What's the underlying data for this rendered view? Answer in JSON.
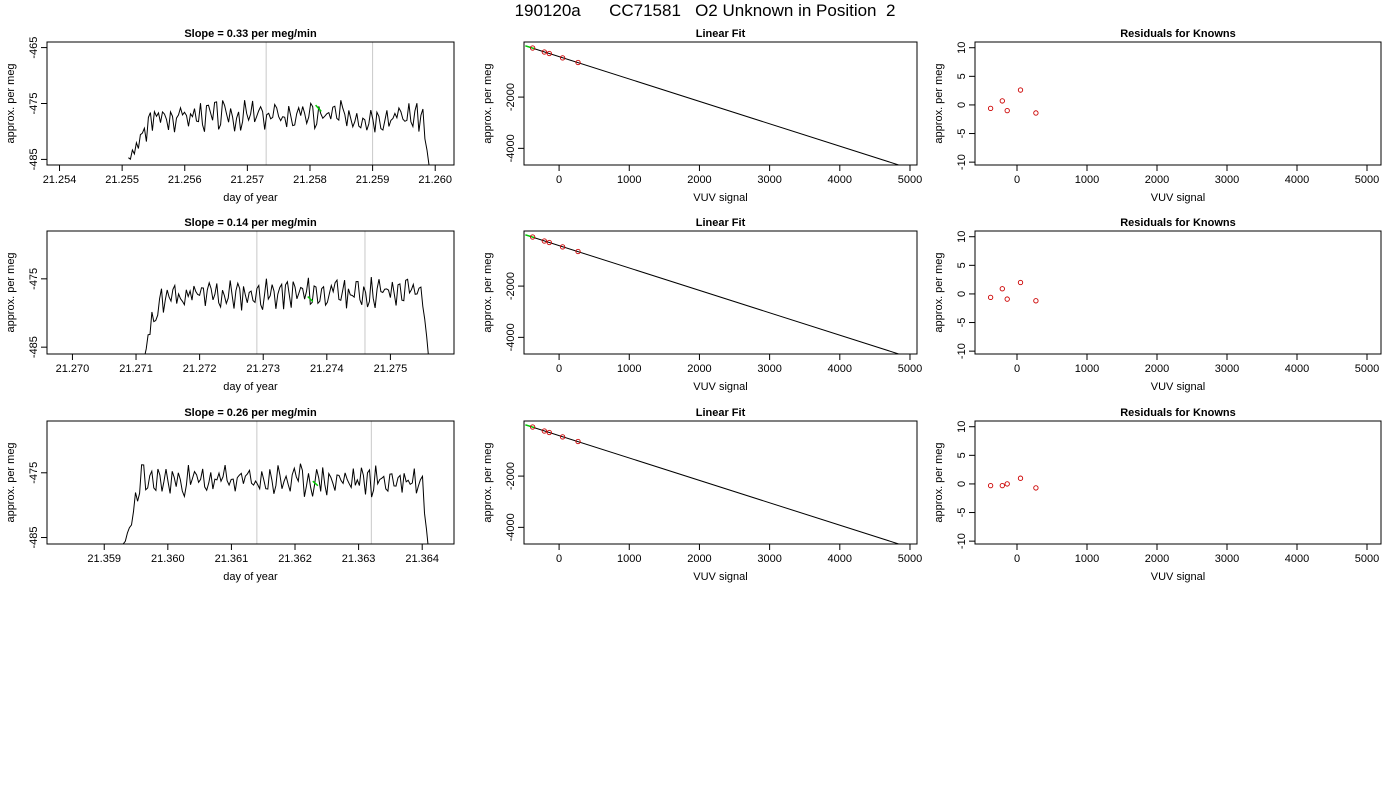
{
  "figure": {
    "title": "190120a      CC71581   O2 Unknown in Position  2"
  },
  "chart_data": [
    {
      "type": "line",
      "title": "Slope =  0.33  per meg/min",
      "xlabel": "day of year",
      "ylabel": "approx. per meg",
      "xlim": [
        21.2538,
        21.2603
      ],
      "ylim": [
        -486,
        -464
      ],
      "xticks": [
        "21.254",
        "21.255",
        "21.256",
        "21.257",
        "21.258",
        "21.259",
        "21.260"
      ],
      "yticks": [
        "-465",
        "-475",
        "-485"
      ],
      "vlines": [
        21.2573,
        21.259
      ],
      "seed": 3,
      "signal": {
        "x_start": 21.2551,
        "x_end": 21.2599,
        "base": -477.2,
        "trend": 0.0,
        "amp": 2.2,
        "low": -486,
        "rise_to": 21.2555,
        "drop_from": 21.2598
      },
      "highlight": {
        "x": [
          21.25809,
          21.25818
        ],
        "y": [
          -475.3,
          -476.4
        ],
        "color": "#00cc00"
      }
    },
    {
      "type": "scatter",
      "title": "Linear Fit",
      "xlabel": "VUV signal",
      "ylabel": "approx. per meg",
      "xlim": [
        -500,
        5100
      ],
      "ylim": [
        -4650,
        150
      ],
      "xticks": [
        "0",
        "1000",
        "2000",
        "3000",
        "4000",
        "5000"
      ],
      "yticks": [
        "-2000",
        "-4000"
      ],
      "points": [
        [
          -377,
          -85
        ],
        [
          -210,
          -240
        ],
        [
          -140,
          -300
        ],
        [
          50,
          -470
        ],
        [
          270,
          -650
        ]
      ],
      "fit_line": {
        "x": [
          -480,
          4920
        ],
        "y": [
          0,
          -4720
        ]
      },
      "green_segment": {
        "x": [
          -480,
          -350
        ],
        "y": [
          0,
          -110
        ]
      }
    },
    {
      "type": "scatter",
      "title": "Residuals for Knowns",
      "xlabel": "VUV signal",
      "ylabel": "approx. per meg",
      "xlim": [
        -600,
        5200
      ],
      "ylim": [
        -10.5,
        11
      ],
      "xticks": [
        "0",
        "1000",
        "2000",
        "3000",
        "4000",
        "5000"
      ],
      "yticks": [
        "10",
        "5",
        "0",
        "-5",
        "-10"
      ],
      "points": [
        [
          -377,
          -0.6
        ],
        [
          -210,
          0.7
        ],
        [
          -140,
          -1.0
        ],
        [
          50,
          2.6
        ],
        [
          270,
          -1.4
        ]
      ]
    },
    {
      "type": "line",
      "title": "Slope =  0.14  per meg/min",
      "xlabel": "day of year",
      "ylabel": "approx. per meg",
      "xlim": [
        21.2696,
        21.276
      ],
      "ylim": [
        -486,
        -468
      ],
      "xticks": [
        "21.270",
        "21.271",
        "21.272",
        "21.273",
        "21.274",
        "21.275"
      ],
      "yticks": [
        "-475",
        "-485"
      ],
      "vlines": [
        21.2729,
        21.2746
      ],
      "seed": 11,
      "signal": {
        "x_start": 21.2711,
        "x_end": 21.2756,
        "base": -477.6,
        "trend": 0.8,
        "amp": 1.8,
        "low": -486.5,
        "rise_to": 21.2714,
        "drop_from": 21.2755
      },
      "highlight": {
        "x": [
          21.2737,
          21.27378
        ],
        "y": [
          -477.6,
          -478.3
        ],
        "color": "#00cc00"
      }
    },
    {
      "type": "scatter",
      "title": "Linear Fit",
      "xlabel": "VUV signal",
      "ylabel": "approx. per meg",
      "xlim": [
        -500,
        5100
      ],
      "ylim": [
        -4650,
        150
      ],
      "xticks": [
        "0",
        "1000",
        "2000",
        "3000",
        "4000",
        "5000"
      ],
      "yticks": [
        "-2000",
        "-4000"
      ],
      "points": [
        [
          -377,
          -85
        ],
        [
          -210,
          -240
        ],
        [
          -140,
          -300
        ],
        [
          50,
          -470
        ],
        [
          270,
          -650
        ]
      ],
      "fit_line": {
        "x": [
          -480,
          4920
        ],
        "y": [
          0,
          -4720
        ]
      },
      "green_segment": {
        "x": [
          -480,
          -350
        ],
        "y": [
          0,
          -110
        ]
      }
    },
    {
      "type": "scatter",
      "title": "Residuals for Knowns",
      "xlabel": "VUV signal",
      "ylabel": "approx. per meg",
      "xlim": [
        -600,
        5200
      ],
      "ylim": [
        -10.5,
        11
      ],
      "xticks": [
        "0",
        "1000",
        "2000",
        "3000",
        "4000",
        "5000"
      ],
      "yticks": [
        "10",
        "5",
        "0",
        "-5",
        "-10"
      ],
      "points": [
        [
          -377,
          -0.6
        ],
        [
          -210,
          0.9
        ],
        [
          -140,
          -0.9
        ],
        [
          50,
          2.0
        ],
        [
          270,
          -1.2
        ]
      ]
    },
    {
      "type": "line",
      "title": "Slope =  0.26  per meg/min",
      "xlabel": "day of year",
      "ylabel": "approx. per meg",
      "xlim": [
        21.3581,
        21.3645
      ],
      "ylim": [
        -486,
        -467
      ],
      "xticks": [
        "21.359",
        "21.360",
        "21.361",
        "21.362",
        "21.363",
        "21.364"
      ],
      "yticks": [
        "-475",
        "-485"
      ],
      "vlines": [
        21.3614,
        21.3632
      ],
      "seed": 23,
      "signal": {
        "x_start": 21.3593,
        "x_end": 21.3641,
        "base": -476.2,
        "trend": 0.0,
        "amp": 2.0,
        "low": -487,
        "rise_to": 21.3596,
        "drop_from": 21.364
      },
      "highlight": {
        "x": [
          21.36228,
          21.36236
        ],
        "y": [
          -476.3,
          -477.0
        ],
        "color": "#00cc00"
      }
    },
    {
      "type": "scatter",
      "title": "Linear Fit",
      "xlabel": "VUV signal",
      "ylabel": "approx. per meg",
      "xlim": [
        -500,
        5100
      ],
      "ylim": [
        -4650,
        150
      ],
      "xticks": [
        "0",
        "1000",
        "2000",
        "3000",
        "4000",
        "5000"
      ],
      "yticks": [
        "-2000",
        "-4000"
      ],
      "points": [
        [
          -377,
          -85
        ],
        [
          -210,
          -240
        ],
        [
          -140,
          -300
        ],
        [
          50,
          -470
        ],
        [
          270,
          -650
        ]
      ],
      "fit_line": {
        "x": [
          -480,
          4920
        ],
        "y": [
          0,
          -4720
        ]
      },
      "green_segment": {
        "x": [
          -480,
          -350
        ],
        "y": [
          0,
          -110
        ]
      }
    },
    {
      "type": "scatter",
      "title": "Residuals for Knowns",
      "xlabel": "VUV signal",
      "ylabel": "approx. per meg",
      "xlim": [
        -600,
        5200
      ],
      "ylim": [
        -10.5,
        11
      ],
      "xticks": [
        "0",
        "1000",
        "2000",
        "3000",
        "4000",
        "5000"
      ],
      "yticks": [
        "10",
        "5",
        "0",
        "-5",
        "-10"
      ],
      "points": [
        [
          -377,
          -0.3
        ],
        [
          -210,
          -0.3
        ],
        [
          -140,
          0.0
        ],
        [
          50,
          1.0
        ],
        [
          270,
          -0.7
        ]
      ]
    }
  ]
}
